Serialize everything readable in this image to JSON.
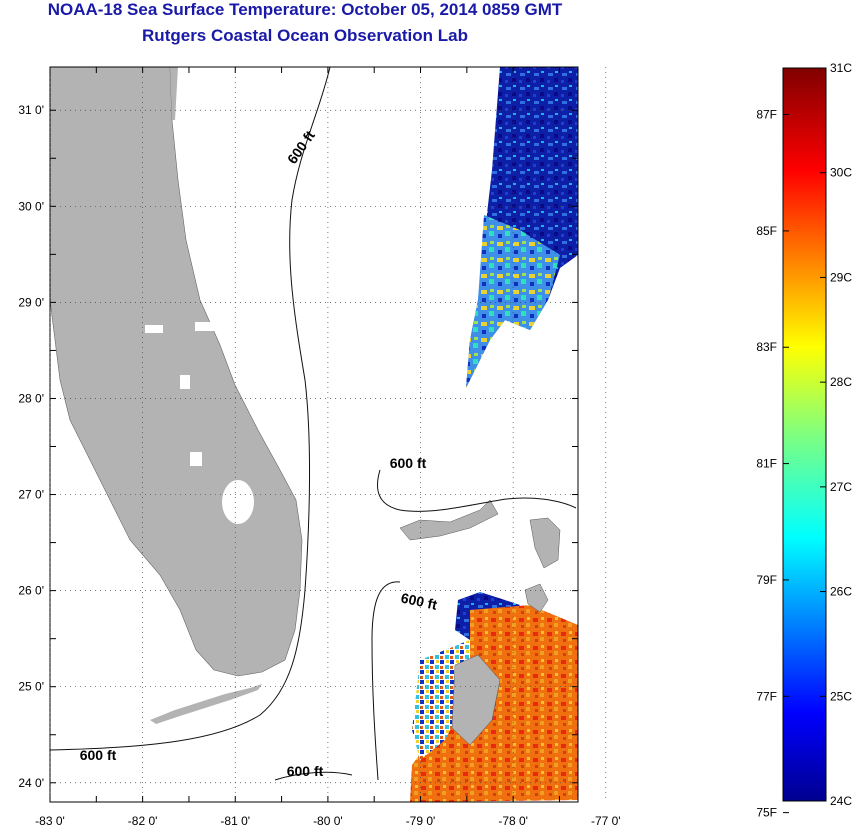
{
  "header": {
    "title": "NOAA-18 Sea Surface Temperature:  October 05, 2014 0859 GMT",
    "subtitle": "Rutgers Coastal Ocean Observation Lab"
  },
  "map": {
    "lon_labels": [
      "-83 0'",
      "-82 0'",
      "-81 0'",
      "-80 0'",
      "-79 0'",
      "-78 0'",
      "-77 0'"
    ],
    "lon_values": [
      -83,
      -82,
      -81,
      -80,
      -79,
      -78,
      -77
    ],
    "lat_labels": [
      "24 0'",
      "25 0'",
      "26 0'",
      "27 0'",
      "28 0'",
      "29 0'",
      "30 0'",
      "31 0'"
    ],
    "lat_values": [
      24,
      25,
      26,
      27,
      28,
      29,
      30,
      31
    ],
    "lon_range": [
      -83,
      -77.3
    ],
    "lat_range": [
      23.8,
      31.45
    ],
    "isobath_label": "600 ft",
    "land_color": "#b3b3b3"
  },
  "colorbar": {
    "celsius_labels": [
      "31C",
      "30C",
      "29C",
      "28C",
      "27C",
      "26C",
      "25C",
      "24C"
    ],
    "fahrenheit_labels": [
      "87F",
      "85F",
      "83F",
      "81F",
      "79F",
      "77F",
      "75F"
    ],
    "c_range": [
      24,
      31
    ],
    "f_values": [
      87,
      85,
      83,
      81,
      79,
      77,
      75
    ]
  }
}
